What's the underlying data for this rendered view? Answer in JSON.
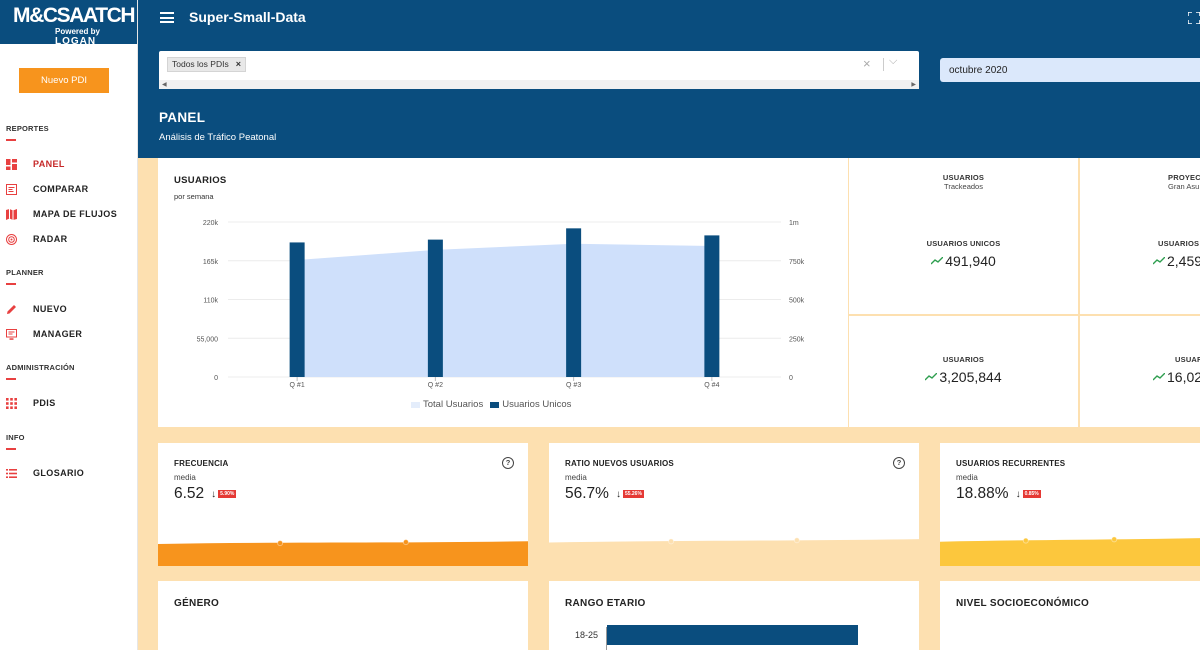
{
  "brand": {
    "logo_main": "M&CSAATCH",
    "logo_powered": "Powered by",
    "logo_logan": "LOGAN",
    "accent": "#f7941d",
    "primary": "#0a4d7e"
  },
  "header": {
    "app_title": "Super-Small-Data",
    "filter_chip": "Todos los PDIs",
    "date_value": "octubre 2020",
    "page_title": "PANEL",
    "page_subtitle": "Análisis de Tráfico Peatonal"
  },
  "sidebar": {
    "new_button": "Nuevo PDI",
    "sections": {
      "reportes": "REPORTES",
      "planner": "PLANNER",
      "admin": "ADMINISTRACIÓN",
      "info": "INFO"
    },
    "items": {
      "panel": "PANEL",
      "comparar": "COMPARAR",
      "mapa": "MAPA DE FLUJOS",
      "radar": "RADAR",
      "nuevo": "NUEVO",
      "manager": "MANAGER",
      "pdis": "PDIS",
      "glosario": "GLOSARIO"
    }
  },
  "users_card": {
    "title": "USUARIOS",
    "subtitle": "por semana"
  },
  "chart_data": {
    "type": "bar",
    "title": "USUARIOS",
    "subtitle": "por semana",
    "categories": [
      "Q #1",
      "Q #2",
      "Q #3",
      "Q #4"
    ],
    "left_axis_ticks": [
      "0",
      "55,000",
      "110k",
      "165k",
      "220k"
    ],
    "right_axis_ticks": [
      "0",
      "250k",
      "500k",
      "750k",
      "1m"
    ],
    "left_ylim": [
      0,
      220000
    ],
    "right_ylim": [
      0,
      1000000
    ],
    "series": [
      {
        "name": "Total Usuarios",
        "type": "area",
        "axis": "right",
        "color": "#cfe0fb",
        "values": [
          755000,
          820000,
          860000,
          845000
        ]
      },
      {
        "name": "Usuarios Unicos",
        "type": "bar",
        "axis": "left",
        "color": "#0a4d7e",
        "values": [
          191000,
          195000,
          211000,
          201000
        ]
      }
    ],
    "grid": true,
    "legend": "bottom"
  },
  "stats": {
    "usuarios_label": "USUARIOS",
    "usuarios_sub": "Trackeados",
    "proyec_label": "PROYEC",
    "proyec_sub": "Gran Asu",
    "unicos_label": "USUARIOS UNICOS",
    "unicos_value": "491,940",
    "unicos_label_2": "USUARIOS",
    "unicos_value_2": "2,459",
    "usuarios_total_label": "USUARIOS",
    "usuarios_total_value": "3,205,844",
    "usuarios_total_label_2": "USUAR",
    "usuarios_total_value_2": "16,02"
  },
  "metrics": [
    {
      "title": "FRECUENCIA",
      "sub": "media",
      "value": "6.52",
      "badge": "5.90%",
      "color": "#f7941d",
      "level": 0.2
    },
    {
      "title": "RATIO NUEVOS USUARIOS",
      "sub": "media",
      "value": "56.7%",
      "badge": "55.26%",
      "color": "#fde0b0",
      "level": 0.35
    },
    {
      "title": "USUARIOS RECURRENTES",
      "sub": "media",
      "value": "18.88%",
      "badge": "0.85%",
      "color": "#fcc73d",
      "level": 0.42
    }
  ],
  "bottom": {
    "genero": "GÉNERO",
    "rango": "RANGO ETARIO",
    "nivel": "NIVEL SOCIOECONÓMICO",
    "rango_first_label": "18-25",
    "rango_first_value": 0.76
  }
}
